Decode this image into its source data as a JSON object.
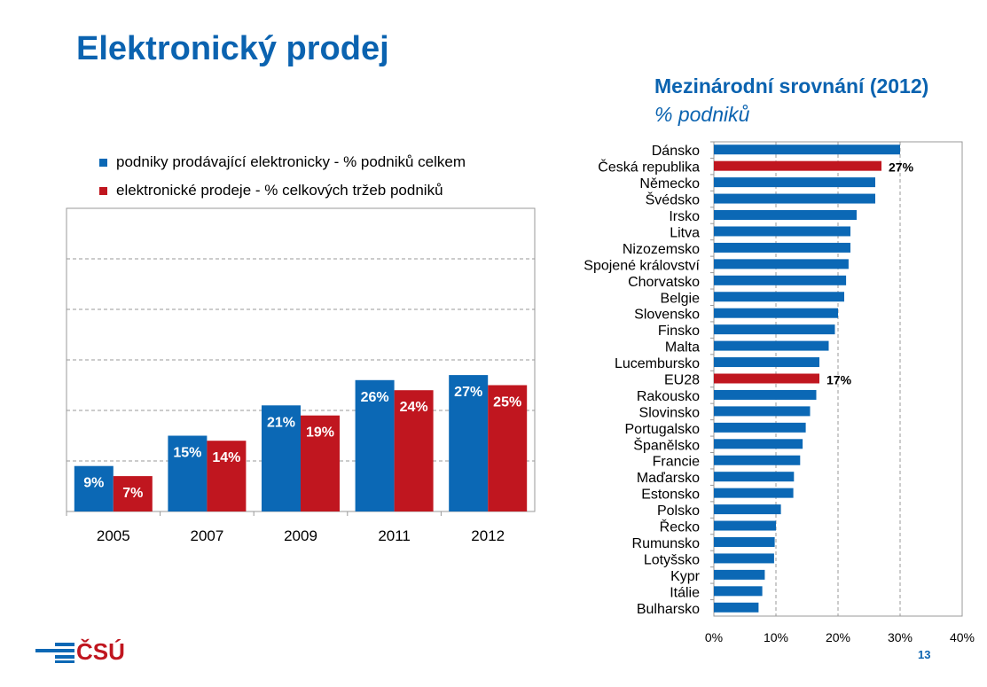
{
  "title": "Elektronický prodej",
  "logo_text": "ČSÚ",
  "page_number": "13",
  "colors": {
    "blue": "#0b68b5",
    "red": "#c0161f",
    "title": "#0b63b0"
  },
  "chart_data": [
    {
      "type": "bar",
      "categories": [
        "2005",
        "2007",
        "2009",
        "2011",
        "2012"
      ],
      "ylim": [
        0,
        60
      ],
      "grid": true,
      "legend": "top",
      "series": [
        {
          "name": "podniky prodávající elektronicky - % podniků celkem",
          "values": [
            9,
            15,
            21,
            26,
            27
          ],
          "labels": [
            "9%",
            "15%",
            "21%",
            "26%",
            "27%"
          ]
        },
        {
          "name": "elektronické prodeje - % celkových tržeb podniků",
          "values": [
            7,
            14,
            19,
            24,
            25
          ],
          "labels": [
            "7%",
            "14%",
            "19%",
            "24%",
            "25%"
          ]
        }
      ]
    },
    {
      "type": "bar",
      "orientation": "horizontal",
      "title": "Mezinárodní srovnání (2012)",
      "subtitle": "% podniků",
      "xlim": [
        0,
        40
      ],
      "xticks": [
        "0%",
        "10%",
        "20%",
        "30%",
        "40%"
      ],
      "grid": true,
      "categories": [
        "Dánsko",
        "Česká republika",
        "Německo",
        "Švédsko",
        "Irsko",
        "Litva",
        "Nizozemsko",
        "Spojené království",
        "Chorvatsko",
        "Belgie",
        "Slovensko",
        "Finsko",
        "Malta",
        "Lucembursko",
        "EU28",
        "Rakousko",
        "Slovinsko",
        "Portugalsko",
        "Španělsko",
        "Francie",
        "Maďarsko",
        "Estonsko",
        "Polsko",
        "Řecko",
        "Rumunsko",
        "Lotyšsko",
        "Kypr",
        "Itálie",
        "Bulharsko"
      ],
      "values": [
        30,
        27,
        26,
        26,
        23,
        22,
        22,
        21.7,
        21.3,
        21,
        20,
        19.5,
        18.5,
        17,
        17,
        16.5,
        15.5,
        14.8,
        14.3,
        13.9,
        12.9,
        12.8,
        10.8,
        10,
        9.8,
        9.7,
        8.2,
        7.8,
        7.2
      ],
      "highlighted": {
        "Česká republika": "27%",
        "EU28": "17%"
      }
    }
  ]
}
